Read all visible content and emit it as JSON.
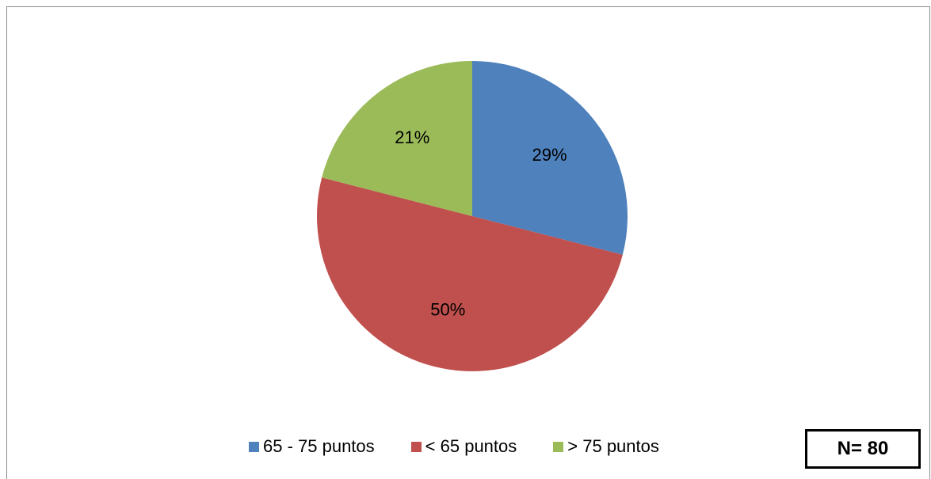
{
  "chart_data": {
    "type": "pie",
    "categories": [
      "65 - 75 puntos",
      "< 65 puntos",
      "> 75 puntos"
    ],
    "values": [
      29,
      50,
      21
    ],
    "labels": [
      "29%",
      "50%",
      "21%"
    ],
    "colors": [
      "#4F81BD",
      "#C0504D",
      "#9BBB59"
    ],
    "start_angle_deg": 0,
    "direction": "clockwise",
    "legend_position": "bottom",
    "title": ""
  },
  "legend": {
    "items": [
      {
        "label": "65 - 75 puntos",
        "color": "#4F81BD"
      },
      {
        "label": "< 65 puntos",
        "color": "#C0504D"
      },
      {
        "label": "> 75 puntos",
        "color": "#9BBB59"
      }
    ]
  },
  "sample_box": {
    "text": "N= 80"
  }
}
